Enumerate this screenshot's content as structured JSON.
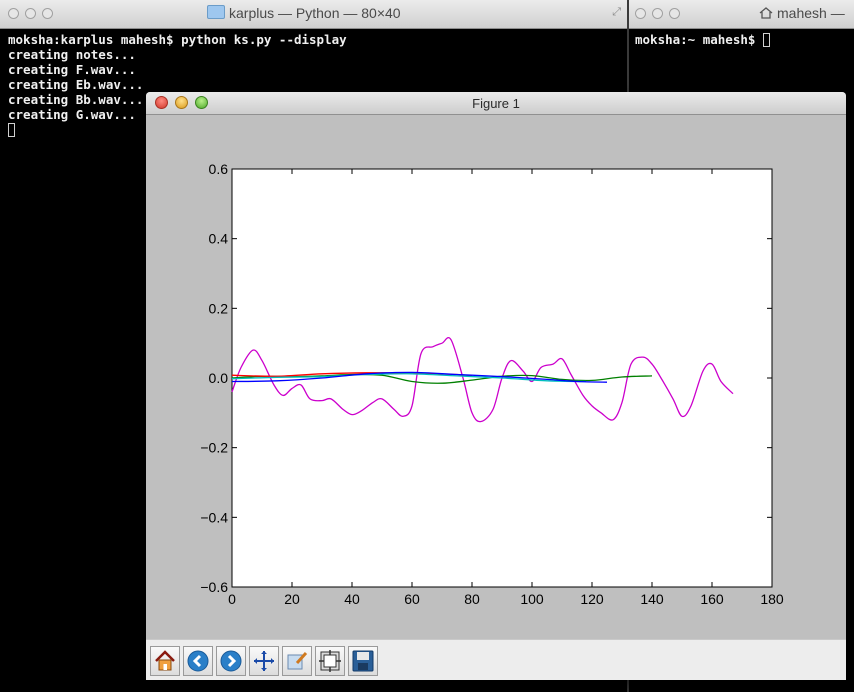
{
  "terminal_left": {
    "title": "karplus — Python — 80×40",
    "lines": [
      "moksha:karplus mahesh$ python ks.py --display",
      "creating notes...",
      "creating F.wav...",
      "creating Eb.wav...",
      "creating Bb.wav...",
      "creating G.wav..."
    ]
  },
  "terminal_right": {
    "title": "mahesh —",
    "prompt": "moksha:~ mahesh$"
  },
  "figure": {
    "title": "Figure 1",
    "toolbar": {
      "icons": [
        "home-icon",
        "back-arrow-icon",
        "forward-arrow-icon",
        "pan-move-icon",
        "zoom-rect-icon",
        "subplots-config-icon",
        "save-disk-icon"
      ]
    }
  },
  "chart_data": {
    "type": "line",
    "title": "",
    "xlabel": "",
    "ylabel": "",
    "xlim": [
      0,
      180
    ],
    "ylim": [
      -0.6,
      0.6
    ],
    "x_ticks": [
      0,
      20,
      40,
      60,
      80,
      100,
      120,
      140,
      160,
      180
    ],
    "y_ticks": [
      -0.6,
      -0.4,
      -0.2,
      0.0,
      0.2,
      0.4,
      0.6
    ],
    "x_tick_labels": [
      "0",
      "20",
      "40",
      "60",
      "80",
      "100",
      "120",
      "140",
      "160",
      "180"
    ],
    "y_tick_labels": [
      "−0.6",
      "−0.4",
      "−0.2",
      "0.0",
      "0.2",
      "0.4",
      "0.6"
    ],
    "grid": false,
    "series": [
      {
        "color": "#cc00cc",
        "x": [
          0,
          3,
          7,
          10,
          14,
          17,
          20,
          23,
          26,
          30,
          33,
          37,
          40,
          43,
          47,
          50,
          54,
          57,
          60,
          63,
          67,
          70,
          73,
          77,
          80,
          83,
          87,
          90,
          93,
          97,
          100,
          103,
          107,
          110,
          113,
          117,
          120,
          123,
          127,
          130,
          133,
          137,
          140,
          143,
          147,
          150,
          153,
          157,
          160,
          163,
          167
        ],
        "y": [
          -0.04,
          0.03,
          0.08,
          0.05,
          -0.02,
          -0.05,
          -0.03,
          -0.02,
          -0.06,
          -0.065,
          -0.06,
          -0.09,
          -0.105,
          -0.095,
          -0.07,
          -0.06,
          -0.09,
          -0.11,
          -0.08,
          0.07,
          0.09,
          0.1,
          0.11,
          0.0,
          -0.1,
          -0.125,
          -0.09,
          0.0,
          0.05,
          0.02,
          -0.01,
          0.03,
          0.04,
          0.055,
          0.01,
          -0.05,
          -0.08,
          -0.1,
          -0.12,
          -0.07,
          0.04,
          0.06,
          0.04,
          0.0,
          -0.06,
          -0.11,
          -0.08,
          0.02,
          0.04,
          -0.01,
          -0.045
        ]
      },
      {
        "color": "#008000",
        "x": [
          0,
          10,
          20,
          30,
          40,
          50,
          60,
          70,
          80,
          90,
          100,
          110,
          120,
          130,
          140
        ],
        "y": [
          0.0,
          0.005,
          0.004,
          0.006,
          0.01,
          0.008,
          -0.01,
          -0.015,
          -0.006,
          0.005,
          0.007,
          -0.004,
          -0.007,
          0.003,
          0.006
        ]
      },
      {
        "color": "#ff0000",
        "x": [
          0,
          15,
          30,
          45,
          60,
          75,
          80
        ],
        "y": [
          0.008,
          0.005,
          0.012,
          0.015,
          0.014,
          0.01,
          0.006
        ]
      },
      {
        "color": "#00bfbf",
        "x": [
          0,
          15,
          30,
          45,
          60,
          75,
          90,
          105,
          118
        ],
        "y": [
          -0.002,
          0.002,
          0.004,
          0.01,
          0.012,
          0.006,
          0.0,
          -0.008,
          -0.01
        ]
      },
      {
        "color": "#0000ff",
        "x": [
          0,
          15,
          30,
          45,
          60,
          75,
          90,
          105,
          115,
          125
        ],
        "y": [
          -0.01,
          -0.008,
          0.0,
          0.012,
          0.016,
          0.01,
          0.004,
          -0.004,
          -0.01,
          -0.012
        ]
      }
    ]
  }
}
